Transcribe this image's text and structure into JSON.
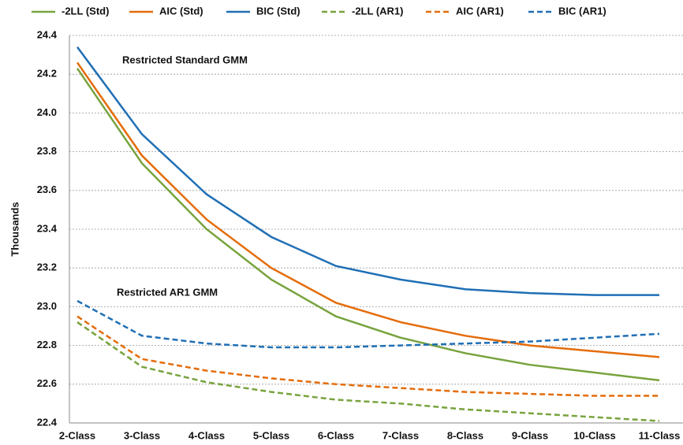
{
  "chart_data": {
    "type": "line",
    "y_label": "Thousands",
    "annotations": [
      "Restricted Standard GMM",
      "Restricted AR1 GMM"
    ],
    "categories": [
      "2-Class",
      "3-Class",
      "4-Class",
      "5-Class",
      "6-Class",
      "7-Class",
      "8-Class",
      "9-Class",
      "10-Class",
      "11-Class"
    ],
    "series": [
      {
        "name": "-2LL (Std)",
        "color": "#77a33d",
        "dashed": false,
        "values": [
          24.23,
          23.74,
          23.4,
          23.14,
          22.95,
          22.84,
          22.76,
          22.7,
          22.66,
          22.62
        ]
      },
      {
        "name": "AIC (Std)",
        "color": "#e46c0a",
        "dashed": false,
        "values": [
          24.26,
          23.78,
          23.45,
          23.2,
          23.02,
          22.92,
          22.85,
          22.8,
          22.77,
          22.74
        ]
      },
      {
        "name": "BIC (Std)",
        "color": "#1f6fb5",
        "dashed": false,
        "values": [
          24.34,
          23.89,
          23.58,
          23.36,
          23.21,
          23.14,
          23.09,
          23.07,
          23.06,
          23.06
        ]
      },
      {
        "name": "-2LL (AR1)",
        "color": "#77a33d",
        "dashed": true,
        "values": [
          22.92,
          22.69,
          22.61,
          22.56,
          22.52,
          22.5,
          22.47,
          22.45,
          22.43,
          22.41
        ]
      },
      {
        "name": "AIC (AR1)",
        "color": "#e46c0a",
        "dashed": true,
        "values": [
          22.95,
          22.73,
          22.67,
          22.63,
          22.6,
          22.58,
          22.56,
          22.55,
          22.54,
          22.54
        ]
      },
      {
        "name": "BIC (AR1)",
        "color": "#1f6fb5",
        "dashed": true,
        "values": [
          23.03,
          22.85,
          22.81,
          22.79,
          22.79,
          22.8,
          22.81,
          22.82,
          22.84,
          22.86
        ]
      }
    ],
    "ylim": [
      22.4,
      24.4
    ],
    "yticks": [
      22.4,
      22.6,
      22.8,
      {
        "value": 23,
        "label": "23.0"
      },
      23.2,
      23.4,
      23.6,
      23.8,
      {
        "value": 24,
        "label": "24.0"
      },
      24.2,
      24.4
    ],
    "grid": true
  }
}
